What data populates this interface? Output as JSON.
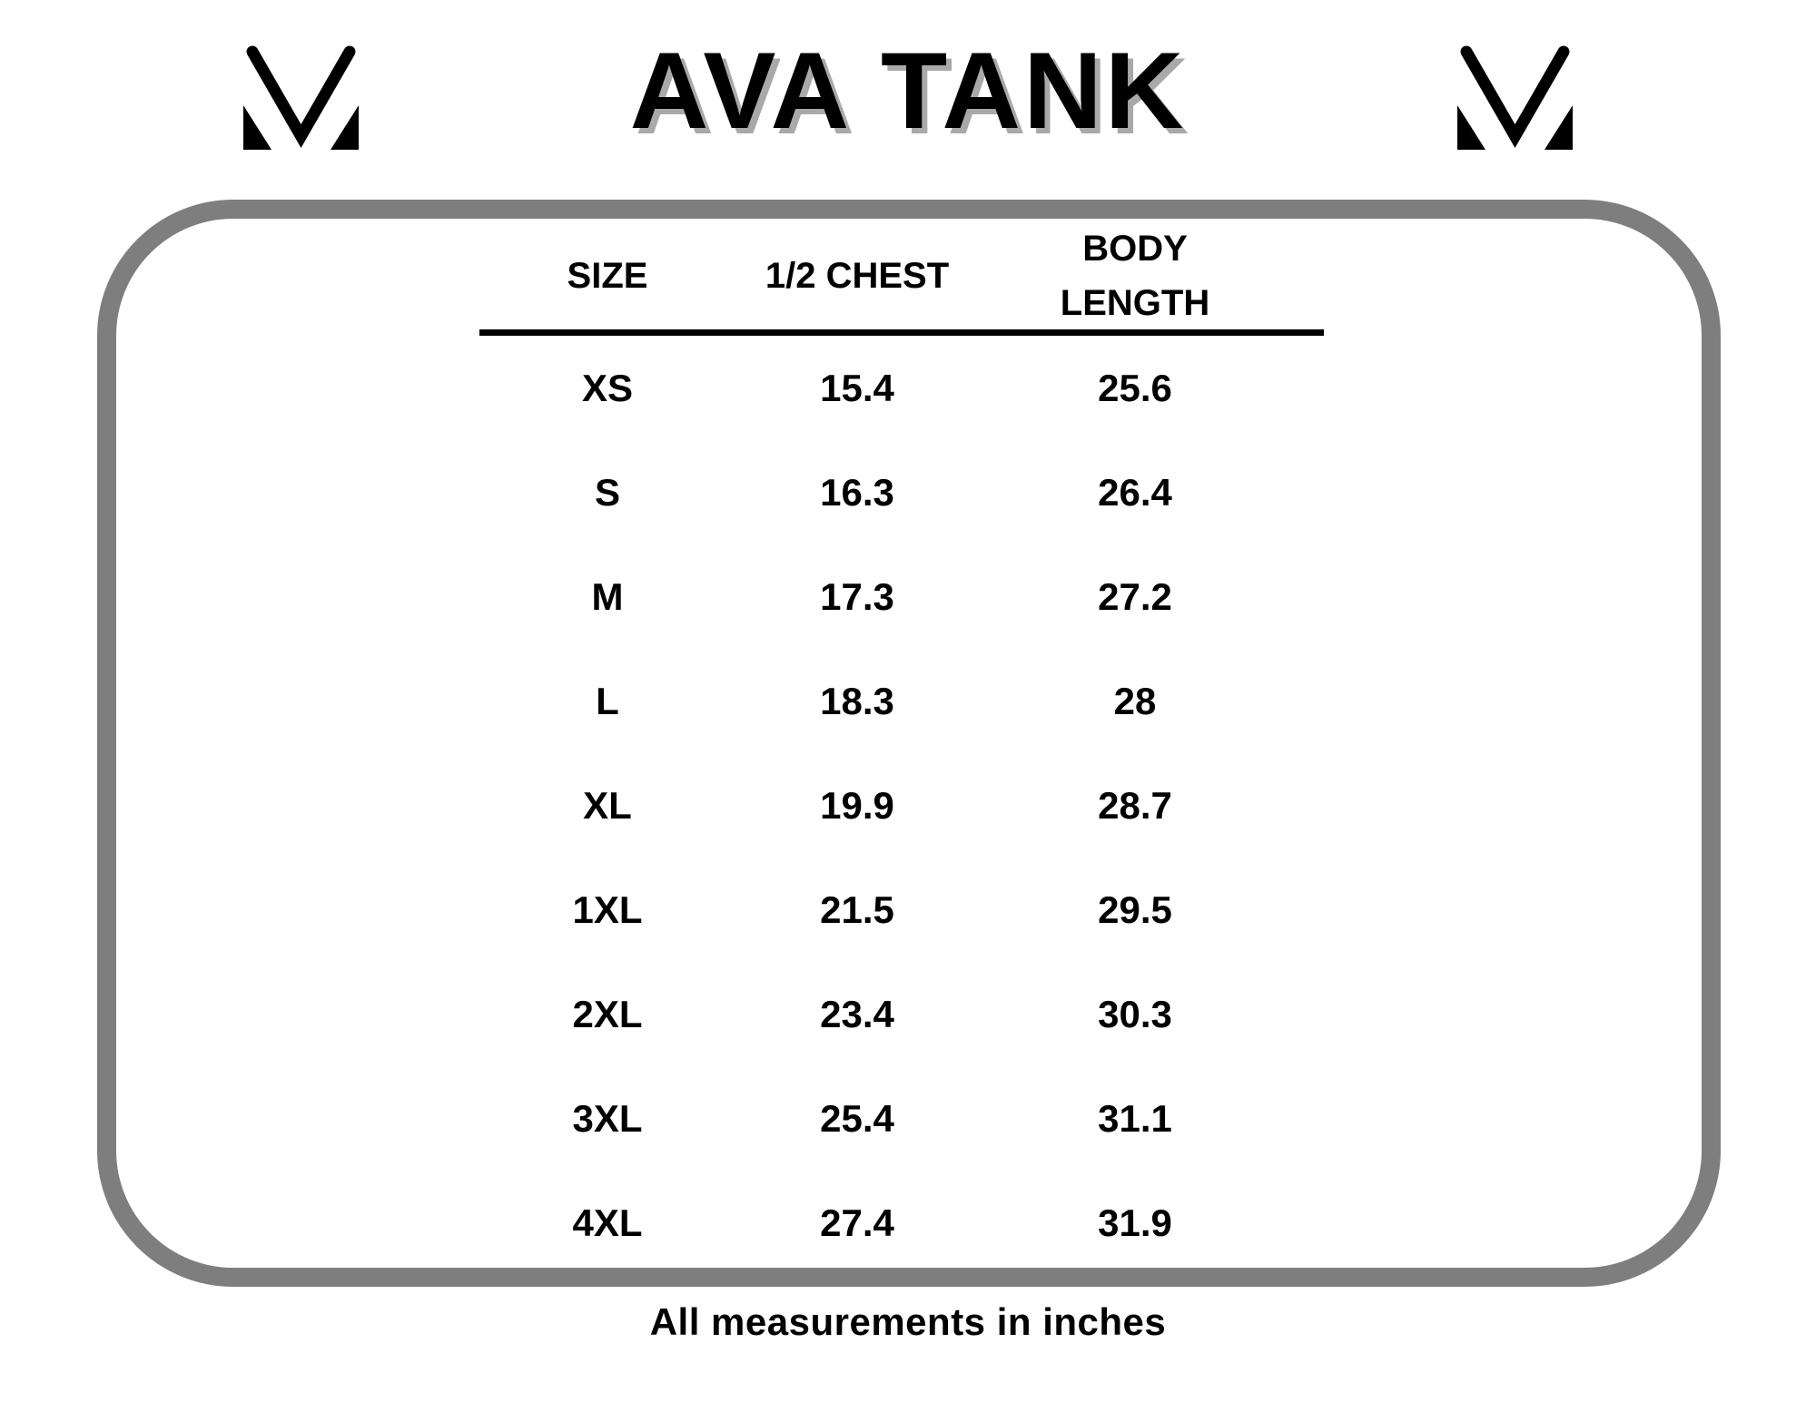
{
  "page": {
    "background": "#ffffff"
  },
  "brand": {
    "title": "AVA TANK",
    "title_color": "#000000",
    "title_shadow_color": "#a9a9a9",
    "logo_icon": "mv-monogram",
    "logo_color": "#000000"
  },
  "size_chart": {
    "frame_border_color": "#7e7e7e",
    "columns": [
      "SIZE",
      "1/2 CHEST",
      "BODY LENGTH"
    ],
    "rows": [
      {
        "size": "XS",
        "half_chest": "15.4",
        "body_length": "25.6"
      },
      {
        "size": "S",
        "half_chest": "16.3",
        "body_length": "26.4"
      },
      {
        "size": "M",
        "half_chest": "17.3",
        "body_length": "27.2"
      },
      {
        "size": "L",
        "half_chest": "18.3",
        "body_length": "28"
      },
      {
        "size": "XL",
        "half_chest": "19.9",
        "body_length": "28.7"
      },
      {
        "size": "1XL",
        "half_chest": "21.5",
        "body_length": "29.5"
      },
      {
        "size": "2XL",
        "half_chest": "23.4",
        "body_length": "30.3"
      },
      {
        "size": "3XL",
        "half_chest": "25.4",
        "body_length": "31.1"
      },
      {
        "size": "4XL",
        "half_chest": "27.4",
        "body_length": "31.9"
      }
    ]
  },
  "footer": {
    "note": "All measurements in inches"
  }
}
